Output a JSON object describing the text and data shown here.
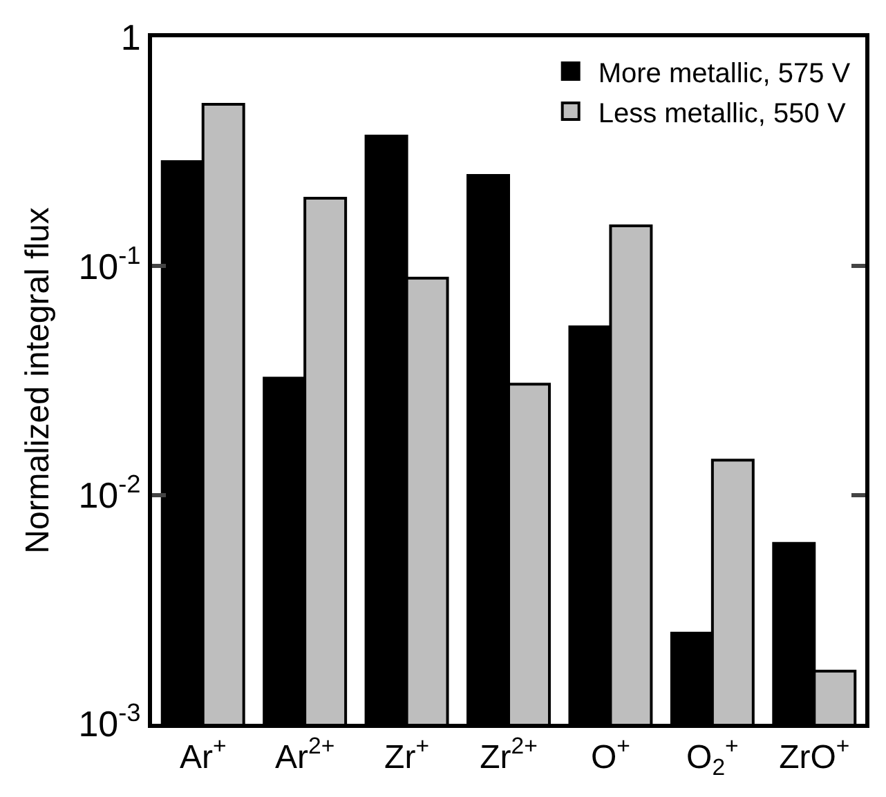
{
  "chart_data": {
    "type": "bar",
    "ylabel": "Normalized integral flux",
    "log": true,
    "legend": "top right",
    "categories": [
      "Ar$^{+}$",
      "Ar$^{2+}$",
      "Zr$^{+}$",
      "Zr$^{2+}$",
      "O$^{+}$",
      "O$_{2}$$^{+}$",
      "ZrO$^{+}$"
    ],
    "series": [
      {
        "name": "More metallic, 575 V",
        "color": "#000000",
        "values": [
          0.286,
          0.0324,
          0.37,
          0.249,
          0.0543,
          0.00249,
          0.00614
        ]
      },
      {
        "name": "Less metallic, 550 V",
        "color": "#bebebe",
        "values": [
          0.51,
          0.198,
          0.0886,
          0.0305,
          0.15,
          0.0142,
          0.0017
        ]
      }
    ],
    "ylim": [
      0.001,
      1
    ],
    "yticks": [
      {
        "value": 0.001,
        "label": "10$^{-3}$"
      },
      {
        "value": 0.01,
        "label": "10$^{-2}$"
      },
      {
        "value": 0.1,
        "label": "10$^{-1}$"
      },
      1
    ]
  }
}
